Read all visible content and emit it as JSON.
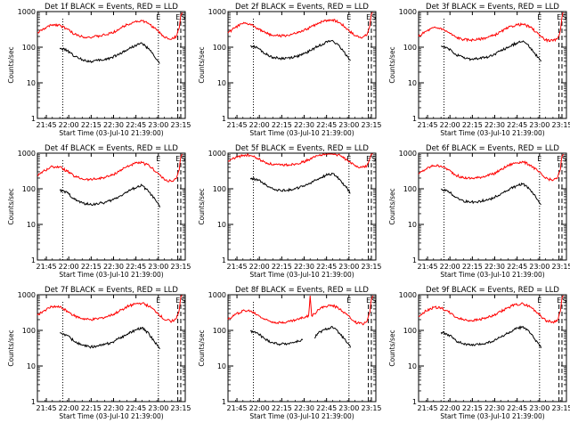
{
  "figure": {
    "xlabel": "Start Time (03-Jul-10 21:39:00)",
    "ylabel": "Counts/sec",
    "x_tick_labels": [
      "21:45",
      "22:00",
      "22:15",
      "22:30",
      "22:45",
      "23:00",
      "23:15"
    ],
    "y_tick_labels": [
      "1",
      "10",
      "100",
      "1000"
    ],
    "marker_labels": [
      "E",
      "E",
      "S"
    ],
    "colors": {
      "events": "#000000",
      "lld": "#ff0000",
      "axes": "#000000",
      "background": "#ffffff"
    }
  },
  "chart_data": [
    {
      "type": "line",
      "title": "Det 1f BLACK = Events, RED = LLD",
      "x_unit": "minutes after 21:39:00",
      "xlim": [
        0,
        99
      ],
      "ylim": [
        1,
        1000
      ],
      "yscale": "log",
      "markers": [
        {
          "x": 17,
          "style": "dotted"
        },
        {
          "x": 81,
          "style": "dotted"
        },
        {
          "x": 94,
          "style": "dashed"
        },
        {
          "x": 96,
          "style": "dashed"
        }
      ],
      "series": [
        {
          "name": "RED = LLD",
          "color": "#ff0000",
          "x": [
            0,
            5,
            10,
            15,
            20,
            25,
            30,
            35,
            40,
            45,
            50,
            55,
            60,
            65,
            70,
            75,
            80,
            85,
            90,
            93,
            95,
            96,
            97
          ],
          "y": [
            250,
            340,
            430,
            420,
            320,
            230,
            200,
            190,
            200,
            220,
            250,
            330,
            430,
            520,
            550,
            450,
            300,
            190,
            170,
            200,
            350,
            800,
            1000
          ]
        },
        {
          "name": "BLACK = Events",
          "color": "#000000",
          "x": [
            15,
            20,
            25,
            30,
            35,
            40,
            45,
            50,
            55,
            60,
            65,
            70,
            75,
            80,
            82
          ],
          "y": [
            95,
            80,
            55,
            45,
            40,
            42,
            45,
            52,
            65,
            85,
            110,
            130,
            85,
            45,
            35
          ]
        }
      ]
    },
    {
      "type": "line",
      "title": "Det 2f BLACK = Events, RED = LLD",
      "x_unit": "minutes after 21:39:00",
      "xlim": [
        0,
        99
      ],
      "ylim": [
        1,
        1000
      ],
      "yscale": "log",
      "markers": [
        {
          "x": 17,
          "style": "dotted"
        },
        {
          "x": 81,
          "style": "dotted"
        },
        {
          "x": 94,
          "style": "dashed"
        },
        {
          "x": 96,
          "style": "dashed"
        }
      ],
      "series": [
        {
          "name": "RED = LLD",
          "color": "#ff0000",
          "x": [
            0,
            5,
            10,
            15,
            20,
            25,
            30,
            35,
            40,
            45,
            50,
            55,
            60,
            65,
            70,
            75,
            80,
            85,
            90,
            93,
            95,
            96,
            97
          ],
          "y": [
            250,
            360,
            460,
            440,
            340,
            250,
            215,
            205,
            215,
            240,
            280,
            360,
            470,
            560,
            590,
            480,
            320,
            210,
            190,
            220,
            400,
            850,
            1000
          ]
        },
        {
          "name": "BLACK = Events",
          "color": "#000000",
          "x": [
            15,
            20,
            25,
            30,
            35,
            40,
            45,
            50,
            55,
            60,
            65,
            70,
            75,
            80,
            82
          ],
          "y": [
            110,
            95,
            65,
            52,
            48,
            50,
            54,
            62,
            80,
            105,
            135,
            155,
            100,
            55,
            42
          ]
        }
      ]
    },
    {
      "type": "line",
      "title": "Det 3f BLACK = Events, RED = LLD",
      "x_unit": "minutes after 21:39:00",
      "xlim": [
        0,
        99
      ],
      "ylim": [
        1,
        1000
      ],
      "yscale": "log",
      "markers": [
        {
          "x": 17,
          "style": "dotted"
        },
        {
          "x": 81,
          "style": "dotted"
        },
        {
          "x": 94,
          "style": "dashed"
        },
        {
          "x": 96,
          "style": "dashed"
        }
      ],
      "series": [
        {
          "name": "RED = LLD",
          "color": "#ff0000",
          "x": [
            0,
            5,
            10,
            15,
            20,
            25,
            30,
            35,
            40,
            45,
            50,
            55,
            60,
            65,
            70,
            75,
            80,
            85,
            90,
            93,
            95,
            96,
            97
          ],
          "y": [
            200,
            280,
            350,
            340,
            260,
            190,
            165,
            160,
            165,
            185,
            210,
            270,
            350,
            420,
            440,
            360,
            240,
            160,
            150,
            170,
            300,
            700,
            1000
          ]
        },
        {
          "name": "BLACK = Events",
          "color": "#000000",
          "x": [
            15,
            20,
            25,
            30,
            35,
            40,
            45,
            50,
            55,
            60,
            65,
            70,
            75,
            80,
            82
          ],
          "y": [
            105,
            90,
            62,
            50,
            46,
            48,
            52,
            60,
            78,
            100,
            128,
            150,
            96,
            52,
            40
          ]
        }
      ]
    },
    {
      "type": "line",
      "title": "Det 4f BLACK = Events, RED = LLD",
      "x_unit": "minutes after 21:39:00",
      "xlim": [
        0,
        99
      ],
      "ylim": [
        1,
        1000
      ],
      "yscale": "log",
      "markers": [
        {
          "x": 17,
          "style": "dotted"
        },
        {
          "x": 81,
          "style": "dotted"
        },
        {
          "x": 94,
          "style": "dashed"
        },
        {
          "x": 96,
          "style": "dashed"
        }
      ],
      "series": [
        {
          "name": "RED = LLD",
          "color": "#ff0000",
          "x": [
            0,
            5,
            10,
            15,
            20,
            25,
            30,
            35,
            40,
            45,
            50,
            55,
            60,
            65,
            70,
            75,
            80,
            85,
            90,
            93,
            95,
            96,
            97
          ],
          "y": [
            240,
            330,
            420,
            410,
            310,
            220,
            190,
            180,
            190,
            210,
            240,
            320,
            420,
            510,
            540,
            440,
            290,
            180,
            160,
            190,
            340,
            780,
            1000
          ]
        },
        {
          "name": "BLACK = Events",
          "color": "#000000",
          "x": [
            15,
            20,
            25,
            30,
            35,
            40,
            45,
            50,
            55,
            60,
            65,
            70,
            75,
            80,
            82
          ],
          "y": [
            90,
            78,
            50,
            40,
            36,
            38,
            41,
            48,
            62,
            82,
            105,
            125,
            80,
            42,
            30
          ]
        }
      ]
    },
    {
      "type": "line",
      "title": "Det 5f BLACK = Events, RED = LLD",
      "x_unit": "minutes after 21:39:00",
      "xlim": [
        0,
        99
      ],
      "ylim": [
        1,
        1000
      ],
      "yscale": "log",
      "markers": [
        {
          "x": 17,
          "style": "dotted"
        },
        {
          "x": 81,
          "style": "dotted"
        },
        {
          "x": 94,
          "style": "dashed"
        },
        {
          "x": 96,
          "style": "dashed"
        }
      ],
      "series": [
        {
          "name": "RED = LLD",
          "color": "#ff0000",
          "x": [
            0,
            5,
            10,
            15,
            20,
            25,
            30,
            35,
            40,
            45,
            50,
            55,
            60,
            65,
            70,
            75,
            80,
            85,
            90,
            93,
            95,
            96,
            97
          ],
          "y": [
            600,
            750,
            880,
            860,
            700,
            540,
            480,
            460,
            470,
            500,
            560,
            680,
            840,
            980,
            1000,
            860,
            620,
            440,
            400,
            440,
            700,
            1000,
            1000
          ]
        },
        {
          "name": "BLACK = Events",
          "color": "#000000",
          "x": [
            15,
            20,
            25,
            30,
            35,
            40,
            45,
            50,
            55,
            60,
            65,
            70,
            75,
            80,
            82
          ],
          "y": [
            200,
            180,
            130,
            100,
            90,
            92,
            100,
            115,
            145,
            185,
            235,
            270,
            180,
            100,
            75
          ]
        }
      ]
    },
    {
      "type": "line",
      "title": "Det 6f BLACK = Events, RED = LLD",
      "x_unit": "minutes after 21:39:00",
      "xlim": [
        0,
        99
      ],
      "ylim": [
        1,
        1000
      ],
      "yscale": "log",
      "markers": [
        {
          "x": 17,
          "style": "dotted"
        },
        {
          "x": 81,
          "style": "dotted"
        },
        {
          "x": 94,
          "style": "dashed"
        },
        {
          "x": 96,
          "style": "dashed"
        }
      ],
      "series": [
        {
          "name": "RED = LLD",
          "color": "#ff0000",
          "x": [
            0,
            5,
            10,
            15,
            20,
            25,
            30,
            35,
            40,
            45,
            50,
            55,
            60,
            65,
            70,
            75,
            80,
            85,
            90,
            93,
            95,
            96,
            97
          ],
          "y": [
            260,
            360,
            450,
            440,
            340,
            240,
            205,
            195,
            205,
            230,
            260,
            340,
            450,
            540,
            570,
            460,
            310,
            195,
            175,
            200,
            360,
            820,
            1000
          ]
        },
        {
          "name": "BLACK = Events",
          "color": "#000000",
          "x": [
            15,
            20,
            25,
            30,
            35,
            40,
            45,
            50,
            55,
            60,
            65,
            70,
            75,
            80,
            82
          ],
          "y": [
            100,
            85,
            58,
            46,
            42,
            44,
            48,
            55,
            72,
            92,
            118,
            140,
            90,
            48,
            36
          ]
        }
      ]
    },
    {
      "type": "line",
      "title": "Det 7f BLACK = Events, RED = LLD",
      "x_unit": "minutes after 21:39:00",
      "xlim": [
        0,
        99
      ],
      "ylim": [
        1,
        1000
      ],
      "yscale": "log",
      "markers": [
        {
          "x": 17,
          "style": "dotted"
        },
        {
          "x": 81,
          "style": "dotted"
        },
        {
          "x": 94,
          "style": "dashed"
        },
        {
          "x": 96,
          "style": "dashed"
        }
      ],
      "series": [
        {
          "name": "RED = LLD",
          "color": "#ff0000",
          "x": [
            0,
            5,
            10,
            15,
            20,
            25,
            30,
            35,
            40,
            45,
            50,
            55,
            60,
            65,
            70,
            75,
            80,
            85,
            90,
            93,
            95,
            96,
            97
          ],
          "y": [
            270,
            370,
            470,
            450,
            350,
            250,
            215,
            200,
            210,
            235,
            270,
            350,
            460,
            550,
            580,
            470,
            320,
            200,
            180,
            210,
            380,
            850,
            1000
          ]
        },
        {
          "name": "BLACK = Events",
          "color": "#000000",
          "x": [
            15,
            20,
            25,
            30,
            35,
            40,
            45,
            50,
            55,
            60,
            65,
            70,
            75,
            80,
            82
          ],
          "y": [
            85,
            72,
            48,
            38,
            34,
            36,
            40,
            46,
            60,
            78,
            100,
            120,
            76,
            40,
            30
          ]
        }
      ]
    },
    {
      "type": "line",
      "title": "Det 8f BLACK = Events, RED = LLD",
      "x_unit": "minutes after 21:39:00",
      "xlim": [
        0,
        99
      ],
      "ylim": [
        1,
        1000
      ],
      "yscale": "log",
      "markers": [
        {
          "x": 17,
          "style": "dotted"
        },
        {
          "x": 81,
          "style": "dotted"
        },
        {
          "x": 94,
          "style": "dashed"
        },
        {
          "x": 96,
          "style": "dashed"
        }
      ],
      "series": [
        {
          "name": "RED = LLD",
          "color": "#ff0000",
          "x": [
            0,
            5,
            10,
            15,
            20,
            25,
            30,
            35,
            40,
            45,
            50,
            54,
            55,
            56,
            58,
            60,
            65,
            70,
            75,
            80,
            85,
            90,
            93,
            95,
            96,
            97
          ],
          "y": [
            200,
            280,
            360,
            350,
            270,
            200,
            175,
            165,
            175,
            195,
            225,
            260,
            1000,
            260,
            290,
            380,
            470,
            500,
            400,
            270,
            170,
            150,
            175,
            320,
            760,
            1000
          ]
        },
        {
          "name": "BLACK = Events",
          "color": "#000000",
          "x": [
            15,
            20,
            25,
            30,
            35,
            40,
            45,
            50,
            54,
            58,
            60,
            65,
            70,
            75,
            80,
            82
          ],
          "y": [
            95,
            82,
            56,
            45,
            41,
            43,
            47,
            54,
            null,
            60,
            82,
            105,
            125,
            80,
            44,
            33
          ]
        }
      ]
    },
    {
      "type": "line",
      "title": "Det 9f BLACK = Events, RED = LLD",
      "x_unit": "minutes after 21:39:00",
      "xlim": [
        0,
        99
      ],
      "ylim": [
        1,
        1000
      ],
      "yscale": "log",
      "markers": [
        {
          "x": 17,
          "style": "dotted"
        },
        {
          "x": 81,
          "style": "dotted"
        },
        {
          "x": 94,
          "style": "dashed"
        },
        {
          "x": 96,
          "style": "dashed"
        }
      ],
      "series": [
        {
          "name": "RED = LLD",
          "color": "#ff0000",
          "x": [
            0,
            5,
            10,
            15,
            20,
            25,
            30,
            35,
            40,
            45,
            50,
            55,
            60,
            65,
            70,
            75,
            80,
            85,
            90,
            93,
            95,
            96,
            97
          ],
          "y": [
            250,
            350,
            440,
            430,
            330,
            235,
            200,
            190,
            200,
            225,
            255,
            335,
            440,
            530,
            560,
            455,
            305,
            190,
            170,
            195,
            355,
            810,
            1000
          ]
        },
        {
          "name": "BLACK = Events",
          "color": "#000000",
          "x": [
            15,
            20,
            25,
            30,
            35,
            40,
            45,
            50,
            55,
            60,
            65,
            70,
            75,
            80,
            82
          ],
          "y": [
            88,
            76,
            52,
            42,
            38,
            40,
            44,
            50,
            65,
            84,
            108,
            128,
            82,
            44,
            32
          ]
        }
      ]
    }
  ]
}
